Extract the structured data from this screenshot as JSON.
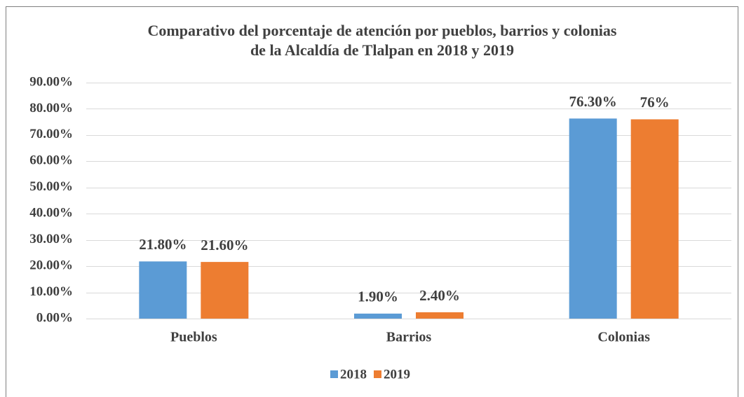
{
  "chart_data": {
    "type": "bar",
    "title": [
      "Comparativo del porcentaje de atención por pueblos, barrios y colonias",
      "de la Alcaldía de Tlalpan en 2018 y 2019"
    ],
    "categories": [
      "Pueblos",
      "Barrios",
      "Colonias"
    ],
    "series": [
      {
        "name": "2018",
        "color": "#5b9bd5",
        "values": [
          21.8,
          1.9,
          76.3
        ],
        "value_labels": [
          "21.80%",
          "1.90%",
          "76.30%"
        ]
      },
      {
        "name": "2019",
        "color": "#ed7d31",
        "values": [
          21.6,
          2.4,
          76
        ],
        "value_labels": [
          "21.60%",
          "2.40%",
          "76%"
        ]
      }
    ],
    "ylim": [
      0,
      90
    ],
    "yticks": [
      {
        "value": 0,
        "label": "0.00%"
      },
      {
        "value": 10,
        "label": "10.00%"
      },
      {
        "value": 20,
        "label": "20.00%"
      },
      {
        "value": 30,
        "label": "30.00%"
      },
      {
        "value": 40,
        "label": "40.00%"
      },
      {
        "value": 50,
        "label": "50.00%"
      },
      {
        "value": 60,
        "label": "60.00%"
      },
      {
        "value": 70,
        "label": "70.00%"
      },
      {
        "value": 80,
        "label": "80.00%"
      },
      {
        "value": 90,
        "label": "90.00%"
      }
    ],
    "grid": true,
    "legend": "bottom"
  }
}
